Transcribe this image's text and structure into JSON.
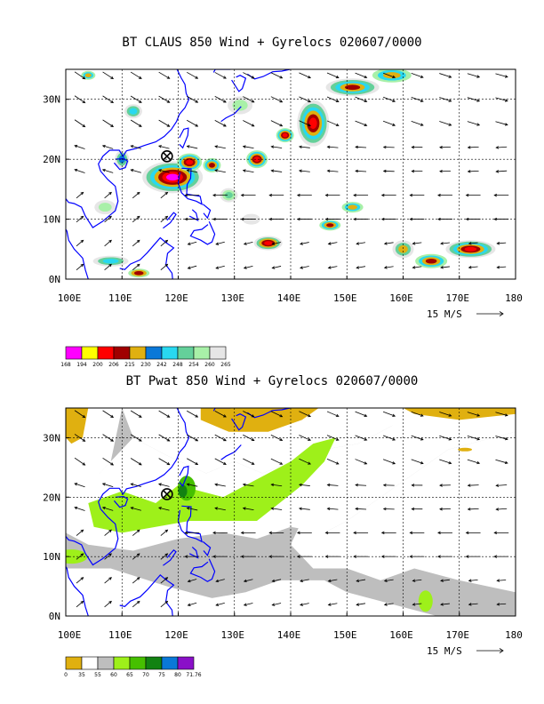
{
  "panels": {
    "top": {
      "title": "BT CLAUS 850 Wind + Gyrelocs 020607/0000",
      "colorbar_labels": [
        "168",
        "194",
        "200",
        "206",
        "215",
        "230",
        "242",
        "248",
        "254",
        "260",
        "265"
      ],
      "colorbar_colors": [
        "#ff00ff",
        "#ffff00",
        "#ff0000",
        "#a00000",
        "#e0b010",
        "#0a78d8",
        "#28d8f0",
        "#64d09a",
        "#a8f0a8",
        "#e6e6e6"
      ]
    },
    "bottom": {
      "title": "BT Pwat 850 Wind + Gyrelocs 020607/0000",
      "colorbar_labels": [
        "0",
        "35",
        "55",
        "60",
        "65",
        "70",
        "75",
        "80",
        "71.76"
      ],
      "colorbar_colors": [
        "#e0b010",
        "#ffffff",
        "#bebebe",
        "#9ef01a",
        "#46c000",
        "#128212",
        "#0a78d8",
        "#8a10c8"
      ]
    }
  },
  "axes": {
    "lon_labels": [
      "100E",
      "110E",
      "120E",
      "130E",
      "140E",
      "150E",
      "160E",
      "170E",
      "180"
    ],
    "lat_labels": [
      "30N",
      "20N",
      "10N",
      "0N"
    ]
  },
  "wind_reference": "15 M/S",
  "gyre_marker": "circle-x-icon",
  "colors": {
    "coastline": "#0000ff",
    "grid": "#000000"
  }
}
